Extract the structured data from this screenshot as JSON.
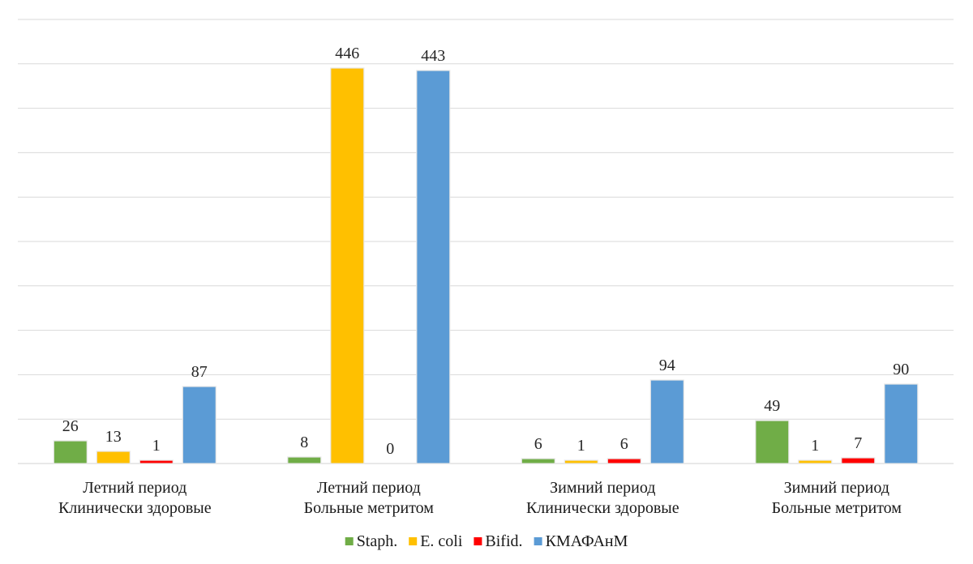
{
  "chart_data": {
    "type": "bar",
    "categories": [
      [
        "Летний период",
        "Клинически здоровые"
      ],
      [
        "Летний период",
        "Больные метритом"
      ],
      [
        "Зимний период",
        "Клинически здоровые"
      ],
      [
        "Зимний период",
        "Больные метритом"
      ]
    ],
    "series": [
      {
        "name": "Staph.",
        "color": "#70ad47",
        "values": [
          26,
          8,
          6,
          49
        ]
      },
      {
        "name": "E. coli",
        "color": "#ffc000",
        "values": [
          13,
          446,
          1,
          1
        ]
      },
      {
        "name": "Bifid.",
        "color": "#ff0000",
        "values": [
          1,
          0,
          6,
          7
        ]
      },
      {
        "name": "КМАФАнМ",
        "color": "#5b9bd5",
        "values": [
          87,
          443,
          94,
          90
        ]
      }
    ],
    "yaxis_visible": false,
    "grid": true,
    "legend": "bottom",
    "ylim": [
      0,
      446
    ]
  }
}
